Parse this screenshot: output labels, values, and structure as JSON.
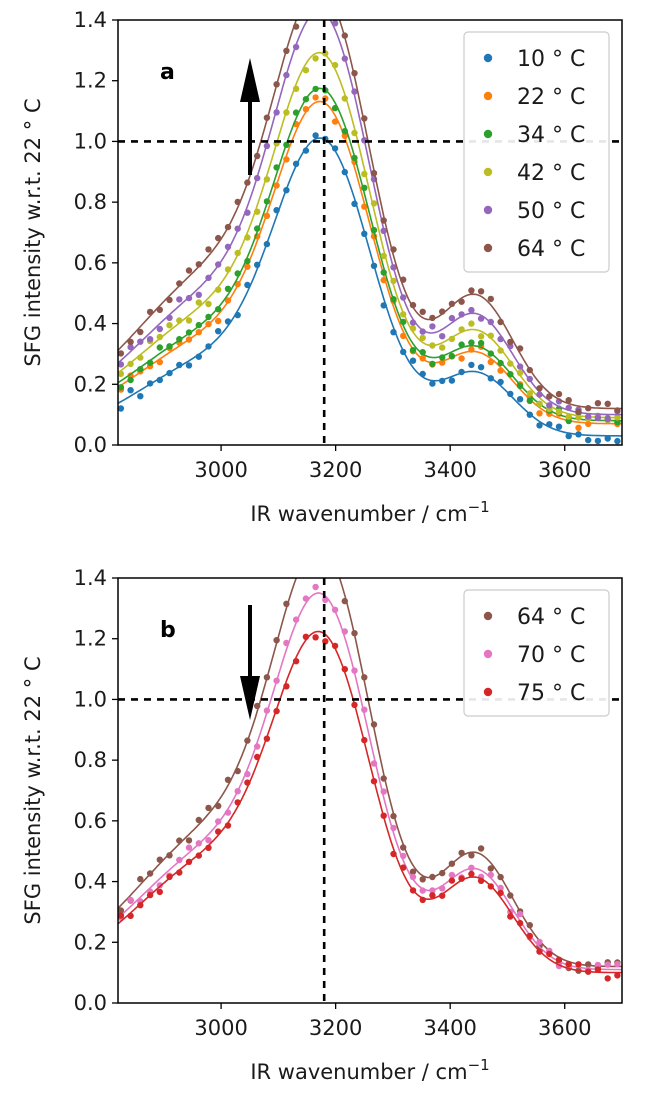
{
  "chart_data": [
    {
      "type": "scatter",
      "panel_label": "a",
      "xlabel": "IR wavenumber / cm",
      "xlabel_sup": "−1",
      "ylabel": "SFG intensity w.r.t. 22 ° C",
      "xlim": [
        2820,
        3700
      ],
      "ylim": [
        0.0,
        1.4
      ],
      "xticks": [
        3000,
        3200,
        3400,
        3600
      ],
      "xtick_labels": [
        "3000",
        "3200",
        "3400",
        "3600"
      ],
      "yticks": [
        0.0,
        0.2,
        0.4,
        0.6,
        0.8,
        1.0,
        1.2,
        1.4
      ],
      "ytick_labels": [
        "0.0",
        "0.2",
        "0.4",
        "0.6",
        "0.8",
        "1.0",
        "1.2",
        "1.4"
      ],
      "reference_lines": {
        "horizontal_y": 1.0,
        "vertical_x": 3180
      },
      "arrow_direction": "up",
      "legend_position": "top-right",
      "series": [
        {
          "name": "10 ° C",
          "color": "#1f77b4",
          "amp": 0.9,
          "shoulder": 0.24,
          "base": 0.03
        },
        {
          "name": "22 ° C",
          "color": "#ff7f0e",
          "amp": 0.97,
          "shoulder": 0.27,
          "base": 0.07
        },
        {
          "name": "34 ° C",
          "color": "#2ca02c",
          "amp": 1.0,
          "shoulder": 0.28,
          "base": 0.08
        },
        {
          "name": "42 ° C",
          "color": "#bcbd22",
          "amp": 1.09,
          "shoulder": 0.33,
          "base": 0.09
        },
        {
          "name": "50 ° C",
          "color": "#9467bd",
          "amp": 1.2,
          "shoulder": 0.38,
          "base": 0.1
        },
        {
          "name": "64 ° C",
          "color": "#8c564b",
          "amp": 1.24,
          "shoulder": 0.43,
          "base": 0.12
        }
      ]
    },
    {
      "type": "scatter",
      "panel_label": "b",
      "xlabel": "IR wavenumber / cm",
      "xlabel_sup": "−1",
      "ylabel": "SFG intensity w.r.t. 22 ° C",
      "xlim": [
        2820,
        3700
      ],
      "ylim": [
        0.0,
        1.4
      ],
      "xticks": [
        3000,
        3200,
        3400,
        3600
      ],
      "xtick_labels": [
        "3000",
        "3200",
        "3400",
        "3600"
      ],
      "yticks": [
        0.0,
        0.2,
        0.4,
        0.6,
        0.8,
        1.0,
        1.2,
        1.4
      ],
      "ytick_labels": [
        "0.0",
        "0.2",
        "0.4",
        "0.6",
        "0.8",
        "1.0",
        "1.2",
        "1.4"
      ],
      "reference_lines": {
        "horizontal_y": 1.0,
        "vertical_x": 3180
      },
      "arrow_direction": "down",
      "legend_position": "top-right",
      "series": [
        {
          "name": "64 ° C",
          "color": "#8c564b",
          "amp": 1.24,
          "shoulder": 0.43,
          "base": 0.12
        },
        {
          "name": "70 ° C",
          "color": "#e377c2",
          "amp": 1.11,
          "shoulder": 0.38,
          "base": 0.11
        },
        {
          "name": "75 ° C",
          "color": "#d62728",
          "amp": 1.0,
          "shoulder": 0.36,
          "base": 0.1
        }
      ]
    }
  ]
}
